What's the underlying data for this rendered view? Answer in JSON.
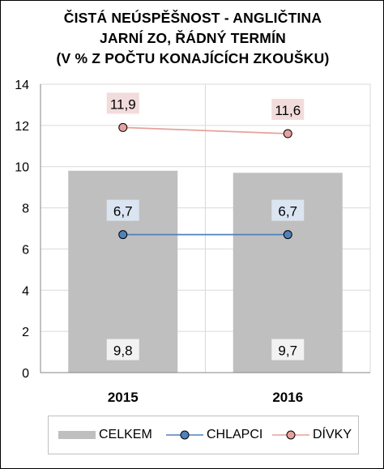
{
  "chart_data": {
    "type": "bar",
    "title_lines": [
      "ČISTÁ NEÚSPĚŠNOST - ANGLIČTINA",
      "JARNÍ ZO, ŘÁDNÝ TERMÍN",
      "(V % Z POČTU KONAJÍCÍCH ZKOUŠKU)"
    ],
    "categories": [
      "2015",
      "2016"
    ],
    "ylim": [
      0,
      14
    ],
    "yticks": [
      0,
      2,
      4,
      6,
      8,
      10,
      12,
      14
    ],
    "ytick_labels": [
      "0",
      "2",
      "4",
      "6",
      "8",
      "10",
      "12",
      "14"
    ],
    "grid": true,
    "legend_position": "bottom",
    "series": [
      {
        "name": "CELKEM",
        "type": "bar",
        "values": [
          9.8,
          9.7
        ],
        "labels": [
          "9,8",
          "9,7"
        ],
        "color": "#bfbfbf"
      },
      {
        "name": "CHLAPCI",
        "type": "line",
        "values": [
          6.7,
          6.7
        ],
        "labels": [
          "6,7",
          "6,7"
        ],
        "color": "#4f81bd",
        "marker_fill": "#4f81bd",
        "label_bg": "#dbe5f1"
      },
      {
        "name": "DÍVKY",
        "type": "line",
        "values": [
          11.9,
          11.6
        ],
        "labels": [
          "11,9",
          "11,6"
        ],
        "color": "#e6a19c",
        "marker_fill": "#e6a19c",
        "label_bg": "#f2dcdb"
      }
    ]
  }
}
